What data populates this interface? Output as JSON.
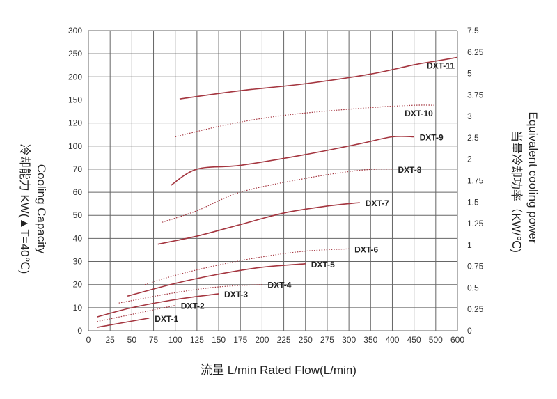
{
  "chart_data": {
    "type": "line",
    "xlabel": "流量 L/min  Rated Flow(L/min)",
    "ylabel_left": [
      "冷却能力 KW(▲T=40℃)",
      "Cooling Capacity"
    ],
    "ylabel_right": [
      "Equivalent cooling power",
      "当量冷却功率（KW/℃)"
    ],
    "x_ticks": [
      "0",
      "25",
      "50",
      "75",
      "100",
      "125",
      "150",
      "175",
      "200",
      "225",
      "250",
      "275",
      "300",
      "350",
      "400",
      "450",
      "500",
      "600"
    ],
    "y_left_ticks": [
      "0",
      "10",
      "20",
      "30",
      "40",
      "50",
      "60",
      "70",
      "100",
      "120",
      "150",
      "200",
      "250",
      "300"
    ],
    "y_right_ticks": [
      "0",
      "0.25",
      "0.5",
      "0.75",
      "1",
      "1.25",
      "1.5",
      "1.75",
      "2",
      "2.5",
      "3",
      "3.75",
      "5",
      "6.25",
      "7.5"
    ],
    "grid": true,
    "colors": {
      "curve": "#a4353f",
      "grid": "#666666"
    },
    "series": [
      {
        "name": "DXT-1",
        "style": "solid",
        "x": [
          10,
          70
        ],
        "y": [
          1.5,
          5.5
        ]
      },
      {
        "name": "DXT-2",
        "style": "dotted",
        "x": [
          10,
          100
        ],
        "y": [
          4,
          11
        ]
      },
      {
        "name": "DXT-3",
        "style": "solid",
        "x": [
          10,
          50,
          100,
          150
        ],
        "y": [
          6,
          10,
          13.5,
          16
        ]
      },
      {
        "name": "DXT-4",
        "style": "dotted",
        "x": [
          35,
          100,
          150,
          200
        ],
        "y": [
          12,
          16.5,
          19,
          20
        ]
      },
      {
        "name": "DXT-5",
        "style": "solid",
        "x": [
          45,
          100,
          150,
          200,
          250
        ],
        "y": [
          15,
          20.5,
          24.5,
          27.5,
          29
        ]
      },
      {
        "name": "DXT-6",
        "style": "dotted",
        "x": [
          65,
          100,
          150,
          200,
          250,
          300
        ],
        "y": [
          20,
          24,
          28.5,
          32,
          34.5,
          35.5
        ]
      },
      {
        "name": "DXT-7",
        "style": "solid",
        "x": [
          80,
          125,
          175,
          225,
          275,
          325
        ],
        "y": [
          37.5,
          41,
          46,
          51,
          54,
          55.5
        ]
      },
      {
        "name": "DXT-8",
        "style": "dotted",
        "x": [
          85,
          125,
          175,
          250,
          325,
          400
        ],
        "y": [
          47,
          52,
          60,
          66,
          69.5,
          70
        ]
      },
      {
        "name": "DXT-9",
        "style": "solid",
        "x": [
          95,
          125,
          175,
          250,
          325,
          400,
          450
        ],
        "y": [
          63,
          70,
          75,
          89,
          102,
          108,
          108
        ]
      },
      {
        "name": "DXT-10",
        "style": "dotted",
        "x": [
          100,
          150,
          200,
          250,
          350,
          450,
          500
        ],
        "y": [
          108,
          117,
          126,
          133,
          140,
          143,
          143
        ]
      },
      {
        "name": "DXT-11",
        "style": "solid",
        "x": [
          105,
          175,
          250,
          350,
          450,
          500,
          600
        ],
        "y": [
          152,
          170,
          185,
          206,
          226,
          234,
          242
        ]
      }
    ]
  }
}
